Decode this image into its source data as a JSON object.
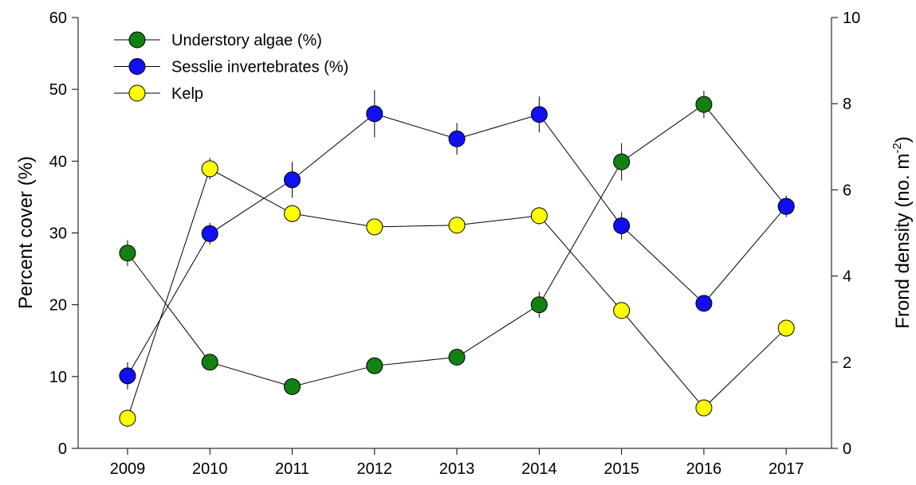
{
  "chart_data": {
    "type": "line",
    "ylabel": "Percent cover (%)",
    "y2label": [
      "Frond density (no. m",
      "-2",
      ")"
    ],
    "x": [
      2009,
      2010,
      2011,
      2012,
      2013,
      2014,
      2015,
      2016,
      2017
    ],
    "xlim": [
      2008.4,
      2017.55
    ],
    "xticks": [
      2009,
      2010,
      2011,
      2012,
      2013,
      2014,
      2015,
      2016,
      2017
    ],
    "ylim": [
      0,
      60
    ],
    "yticks": [
      0,
      10,
      20,
      30,
      40,
      50,
      60
    ],
    "y2lim": [
      0,
      10
    ],
    "y2ticks": [
      0,
      2,
      4,
      6,
      8,
      10
    ],
    "legend": "upper left",
    "series": [
      {
        "name": "Understory algae (%)",
        "color": "#138013",
        "values": [
          27.2,
          12.0,
          8.6,
          11.5,
          12.7,
          20.0,
          39.9,
          47.9,
          33.7
        ],
        "errors": [
          1.8,
          0.5,
          0.5,
          0.5,
          0.6,
          1.8,
          2.6,
          1.9,
          1.0
        ]
      },
      {
        "name": "Sesslie invertebrates (%)",
        "color": "#1010f0",
        "values": [
          10.1,
          29.9,
          37.4,
          46.6,
          43.1,
          46.5,
          31.0,
          20.2,
          33.7
        ],
        "errors": [
          1.9,
          1.5,
          2.5,
          3.3,
          2.2,
          2.5,
          1.9,
          1.0,
          1.5
        ]
      },
      {
        "name": "Kelp",
        "color": "#ffff00",
        "axis": "y2",
        "values": [
          0.7,
          6.49,
          5.45,
          5.14,
          5.18,
          5.4,
          3.2,
          0.94,
          2.79
        ],
        "errors": [
          0.2,
          0.25,
          0.2,
          0.1,
          0.1,
          0.2,
          0.1,
          0.1,
          0.1
        ]
      }
    ]
  }
}
